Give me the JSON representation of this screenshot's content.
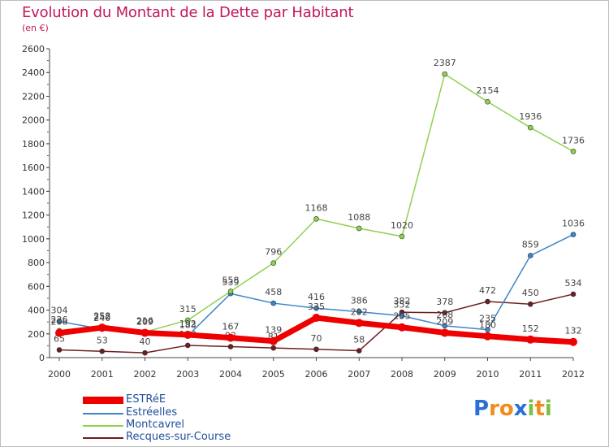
{
  "title": "Evolution du Montant de la Dette par Habitant",
  "subtitle": "(en €)",
  "logo": "Proxiti",
  "colors": {
    "title": "#c2185b",
    "logo_blue": "#2a6fd6",
    "logo_orange": "#f08c1e",
    "logo_green": "#7bc142"
  },
  "chart_data": {
    "type": "line",
    "x": [
      2000,
      2001,
      2002,
      2003,
      2004,
      2005,
      2006,
      2007,
      2008,
      2009,
      2010,
      2011,
      2012
    ],
    "ylim": [
      0,
      2600
    ],
    "yticks": [
      0,
      200,
      400,
      600,
      800,
      1000,
      1200,
      1400,
      1600,
      1800,
      2000,
      2200,
      2400,
      2600
    ],
    "grid": false,
    "legend_position": "bottom-left",
    "series": [
      {
        "name": "Recques-sur-Course",
        "color": "#6e1e22",
        "values": [
          65,
          53,
          40,
          103,
          92,
          81,
          70,
          58,
          382,
          378,
          472,
          450,
          534
        ]
      },
      {
        "name": "Estréelles",
        "color": "#3c86c8",
        "values": [
          304,
          240,
          209,
          183,
          539,
          458,
          416,
          386,
          352,
          268,
          235,
          859,
          1036
        ]
      },
      {
        "name": "Montcavrel",
        "color": "#8fd14f",
        "values": [
          226,
          258,
          216,
          315,
          558,
          796,
          1168,
          1088,
          1020,
          2387,
          2154,
          1936,
          1736
        ]
      },
      {
        "name": "ESTRéE",
        "color": "#ee0000",
        "values": [
          208,
          252,
          209,
          192,
          167,
          139,
          335,
          292,
          255,
          209,
          180,
          152,
          132
        ]
      }
    ]
  }
}
